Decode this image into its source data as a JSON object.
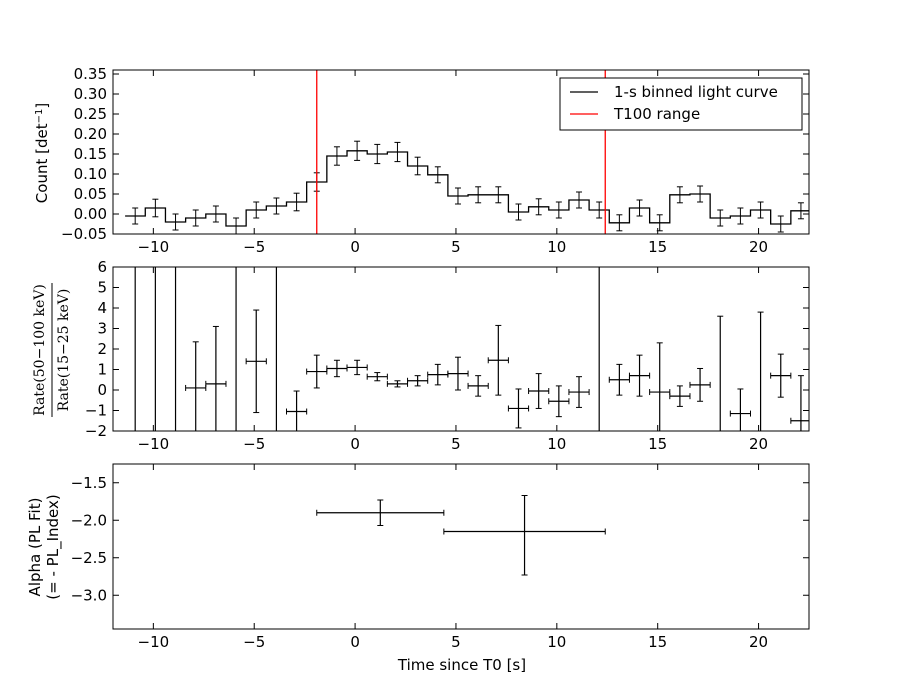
{
  "chart_data": [
    {
      "type": "line",
      "panel": "light_curve",
      "ylabel_prefix": "Count [det",
      "ylabel_sup": "−1",
      "ylabel_suffix": "]",
      "xlim": [
        -12,
        22.5
      ],
      "ylim": [
        -0.05,
        0.36
      ],
      "xticks": [
        -10,
        -5,
        0,
        5,
        10,
        15,
        20
      ],
      "xtick_labels": [
        "−10",
        "−5",
        "0",
        "5",
        "10",
        "15",
        "20"
      ],
      "yticks": [
        -0.05,
        0.0,
        0.05,
        0.1,
        0.15,
        0.2,
        0.25,
        0.3,
        0.35
      ],
      "ytick_labels": [
        "−0.05",
        "0.00",
        "0.05",
        "0.10",
        "0.15",
        "0.20",
        "0.25",
        "0.30",
        "0.35"
      ],
      "legend": {
        "position": "top-right",
        "entries": [
          {
            "label": "1-s binned light curve",
            "color": "#000000"
          },
          {
            "label": "T100 range",
            "color": "#ff0000"
          }
        ]
      },
      "vlines": [
        -1.9,
        12.4
      ],
      "vline_color": "#ff0000",
      "bin_width": 1.0,
      "x": [
        -10.9,
        -9.9,
        -8.9,
        -7.9,
        -6.9,
        -5.9,
        -4.9,
        -3.9,
        -2.9,
        -1.9,
        -0.9,
        0.1,
        1.1,
        2.1,
        3.1,
        4.1,
        5.1,
        6.1,
        7.1,
        8.1,
        9.1,
        10.1,
        11.1,
        12.1,
        13.1,
        14.1,
        15.1,
        16.1,
        17.1,
        18.1,
        19.1,
        20.1,
        21.1,
        22.1
      ],
      "y": [
        -0.005,
        0.015,
        -0.02,
        -0.01,
        0.0,
        -0.03,
        0.01,
        0.02,
        0.03,
        0.08,
        0.145,
        0.158,
        0.15,
        0.155,
        0.12,
        0.098,
        0.045,
        0.048,
        0.048,
        0.005,
        0.018,
        0.01,
        0.035,
        0.01,
        -0.022,
        0.015,
        -0.022,
        0.048,
        0.05,
        -0.01,
        -0.005,
        0.01,
        -0.025,
        0.008
      ],
      "yerr": [
        0.02,
        0.022,
        0.02,
        0.02,
        0.02,
        0.02,
        0.02,
        0.02,
        0.022,
        0.023,
        0.023,
        0.024,
        0.024,
        0.024,
        0.022,
        0.02,
        0.02,
        0.02,
        0.02,
        0.02,
        0.02,
        0.02,
        0.02,
        0.02,
        0.02,
        0.02,
        0.02,
        0.02,
        0.02,
        0.02,
        0.02,
        0.02,
        0.02,
        0.02
      ]
    },
    {
      "type": "scatter",
      "panel": "hardness_ratio",
      "ylabel_numerator": "Rate(50−100 keV)",
      "ylabel_denominator": "Rate(15−25 keV)",
      "xlim": [
        -12,
        22.5
      ],
      "ylim": [
        -2,
        6
      ],
      "xticks": [
        -10,
        -5,
        0,
        5,
        10,
        15,
        20
      ],
      "xtick_labels": [
        "−10",
        "−5",
        "0",
        "5",
        "10",
        "15",
        "20"
      ],
      "yticks": [
        -2,
        -1,
        0,
        1,
        2,
        3,
        4,
        5,
        6
      ],
      "ytick_labels": [
        "−2",
        "−1",
        "0",
        "1",
        "2",
        "3",
        "4",
        "5",
        "6"
      ],
      "xerr": 0.5,
      "points": [
        {
          "x": -10.9,
          "y": null,
          "yerr": 99
        },
        {
          "x": -9.9,
          "y": null,
          "yerr": 99
        },
        {
          "x": -8.9,
          "y": null,
          "yerr": 99
        },
        {
          "x": -7.9,
          "y": 0.1,
          "yerr": 2.25
        },
        {
          "x": -6.9,
          "y": 0.3,
          "yerr": 2.8
        },
        {
          "x": -5.9,
          "y": null,
          "yerr": 99
        },
        {
          "x": -4.9,
          "y": 1.4,
          "yerr": 2.5
        },
        {
          "x": -3.9,
          "y": null,
          "yerr": 99
        },
        {
          "x": -2.9,
          "y": -1.05,
          "yerr": 1.0
        },
        {
          "x": -1.9,
          "y": 0.9,
          "yerr": 0.8
        },
        {
          "x": -0.9,
          "y": 1.05,
          "yerr": 0.4
        },
        {
          "x": 0.1,
          "y": 1.1,
          "yerr": 0.35
        },
        {
          "x": 1.1,
          "y": 0.65,
          "yerr": 0.2
        },
        {
          "x": 2.1,
          "y": 0.3,
          "yerr": 0.15
        },
        {
          "x": 3.1,
          "y": 0.45,
          "yerr": 0.25
        },
        {
          "x": 4.1,
          "y": 0.75,
          "yerr": 0.5
        },
        {
          "x": 5.1,
          "y": 0.8,
          "yerr": 0.8
        },
        {
          "x": 6.1,
          "y": 0.2,
          "yerr": 0.5
        },
        {
          "x": 7.1,
          "y": 1.45,
          "yerr": 1.7
        },
        {
          "x": 8.1,
          "y": -0.9,
          "yerr": 0.95
        },
        {
          "x": 9.1,
          "y": -0.05,
          "yerr": 0.85
        },
        {
          "x": 10.1,
          "y": -0.55,
          "yerr": 0.75
        },
        {
          "x": 11.1,
          "y": -0.1,
          "yerr": 0.75
        },
        {
          "x": 12.1,
          "y": null,
          "yerr": 99
        },
        {
          "x": 13.1,
          "y": 0.5,
          "yerr": 0.75
        },
        {
          "x": 14.1,
          "y": 0.7,
          "yerr": 1.0
        },
        {
          "x": 15.1,
          "y": -0.1,
          "yerr": 2.4
        },
        {
          "x": 16.1,
          "y": -0.3,
          "yerr": 0.5
        },
        {
          "x": 17.1,
          "y": 0.25,
          "yerr": 0.8
        },
        {
          "x": 18.1,
          "y": null,
          "yerr": 99,
          "top": 3.6
        },
        {
          "x": 19.1,
          "y": -1.15,
          "yerr": 1.2
        },
        {
          "x": 20.1,
          "y": null,
          "yerr": 99,
          "top": 3.8
        },
        {
          "x": 21.1,
          "y": 0.7,
          "yerr": 1.05
        },
        {
          "x": 22.1,
          "y": -1.5,
          "yerr": 2.2
        }
      ]
    },
    {
      "type": "scatter",
      "panel": "alpha",
      "ylabel_line1": "Alpha (PL Fit)",
      "ylabel_line2": "(= - PL_Index)",
      "xlabel": "Time since T0 [s]",
      "xlim": [
        -12,
        22.5
      ],
      "ylim": [
        -3.45,
        -1.25
      ],
      "xticks": [
        -10,
        -5,
        0,
        5,
        10,
        15,
        20
      ],
      "xtick_labels": [
        "−10",
        "−5",
        "0",
        "5",
        "10",
        "15",
        "20"
      ],
      "yticks": [
        -3.0,
        -2.5,
        -2.0,
        -1.5
      ],
      "ytick_labels": [
        "−3.0",
        "−2.5",
        "−2.0",
        "−1.5"
      ],
      "points": [
        {
          "x": 1.25,
          "xlo": -1.9,
          "xhi": 4.4,
          "y": -1.9,
          "ylo": -2.07,
          "yhi": -1.73
        },
        {
          "x": 8.4,
          "xlo": 4.4,
          "xhi": 12.4,
          "y": -2.15,
          "ylo": -2.73,
          "yhi": -1.67
        }
      ]
    }
  ]
}
